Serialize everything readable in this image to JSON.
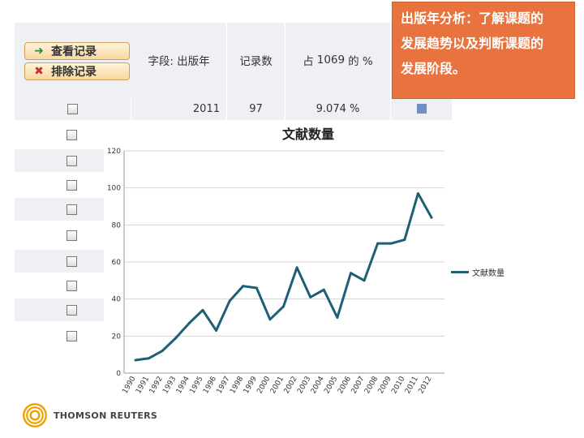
{
  "table": {
    "buttons": {
      "view": "查看记录",
      "exclude": "排除记录"
    },
    "field_label": "字段: 出版年",
    "count_header": "记录数",
    "pct_prefix": "占",
    "pct_total": "1069",
    "pct_suffix": "的 %",
    "row": {
      "year": "2011",
      "count": "97",
      "percent": "9.074 %"
    }
  },
  "callout": {
    "line1": "出版年分析：了解课题的",
    "line2": "发展趋势以及判断课题的",
    "line3": "发展阶段。"
  },
  "colors": {
    "accent": "#e8733e",
    "series": "#1e5f75"
  },
  "brand": {
    "name": "THOMSON REUTERS"
  },
  "chart_data": {
    "type": "line",
    "title": "文献数量",
    "xlabel": "",
    "ylabel": "",
    "ylim": [
      0,
      120
    ],
    "yticks": [
      "0",
      "20",
      "40",
      "60",
      "80",
      "100",
      "120"
    ],
    "legend": "right",
    "grid": true,
    "categories": [
      "1990",
      "1991",
      "1992",
      "1993",
      "1994",
      "1995",
      "1996",
      "1997",
      "1998",
      "1999",
      "2000",
      "2001",
      "2002",
      "2003",
      "2004",
      "2005",
      "2006",
      "2007",
      "2008",
      "2009",
      "2010",
      "2011",
      "2012"
    ],
    "series": [
      {
        "name": "文献数量",
        "values": [
          7,
          8,
          12,
          19,
          27,
          34,
          23,
          39,
          47,
          46,
          29,
          36,
          57,
          41,
          45,
          30,
          54,
          50,
          70,
          70,
          72,
          97,
          84
        ]
      }
    ]
  }
}
